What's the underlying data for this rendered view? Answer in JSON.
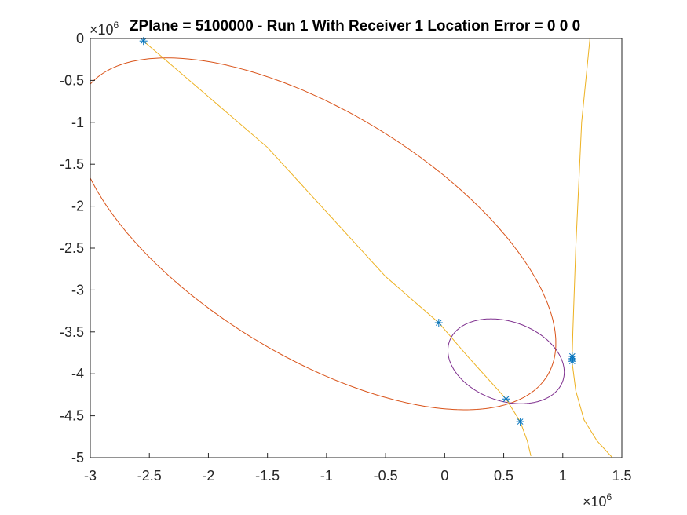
{
  "chart_data": {
    "type": "line",
    "title": "ZPlane = 5100000 - Run 1 With Receiver 1 Location Error = 0  0  0",
    "xlabel": "",
    "ylabel": "",
    "xlim": [
      -3000000,
      1500000
    ],
    "ylim": [
      -5000000,
      0
    ],
    "x_ticks": [
      -3,
      -2.5,
      -2,
      -1.5,
      -1,
      -0.5,
      0,
      0.5,
      1,
      1.5
    ],
    "x_tick_labels": [
      "-3",
      "-2.5",
      "-2",
      "-1.5",
      "-1",
      "-0.5",
      "0",
      "0.5",
      "1",
      "1.5"
    ],
    "y_ticks": [
      0,
      -0.5,
      -1,
      -1.5,
      -2,
      -2.5,
      -3,
      -3.5,
      -4,
      -4.5,
      -5
    ],
    "y_tick_labels": [
      "0",
      "-0.5",
      "-1",
      "-1.5",
      "-2",
      "-2.5",
      "-3",
      "-3.5",
      "-4",
      "-4.5",
      "-5"
    ],
    "x_exponent": "10",
    "x_exponent_power": "6",
    "x_exponent_prefix": "×",
    "y_exponent": "10",
    "y_exponent_power": "6",
    "y_exponent_prefix": "×",
    "grid": false,
    "colors": {
      "red": "#D95319",
      "yellow": "#EDB120",
      "purple": "#7E2F8E",
      "blue": "#0072BD",
      "axis": "#262626"
    },
    "series": [
      {
        "color": "#D95319",
        "shape": "ellipse",
        "center": [
          -1090000,
          -2330000
        ],
        "semi_axes": [
          2630000,
          1270000
        ],
        "angle_deg": -46.5
      },
      {
        "color": "#7E2F8E",
        "shape": "ellipse",
        "center": [
          520000,
          -3850000
        ],
        "semi_axes": [
          560000,
          430000
        ],
        "angle_deg": -48
      },
      {
        "color": "#EDB120",
        "shape": "polyline",
        "x": [
          -2550000,
          -1500000,
          -500000,
          -50000,
          200000,
          520000,
          640000,
          700000,
          730000
        ],
        "y": [
          -30000,
          -1300000,
          -2840000,
          -3390000,
          -3800000,
          -4300000,
          -4570000,
          -4800000,
          -4980000
        ]
      },
      {
        "color": "#EDB120",
        "shape": "polyline",
        "x": [
          1230000,
          1160000,
          1110000,
          1085000,
          1080000
        ],
        "y": [
          0,
          -1000000,
          -2500000,
          -3500000,
          -3780000
        ]
      },
      {
        "color": "#EDB120",
        "shape": "polyline",
        "x": [
          1080000,
          1110000,
          1180000,
          1290000,
          1420000
        ],
        "y": [
          -3870000,
          -4200000,
          -4550000,
          -4800000,
          -5000000
        ]
      }
    ],
    "markers": {
      "symbol": "*",
      "color": "#0072BD",
      "x": [
        -2550000,
        -50000,
        520000,
        640000,
        1080000,
        1080000,
        1080000
      ],
      "y": [
        -30000,
        -3390000,
        -4300000,
        -4570000,
        -3790000,
        -3820000,
        -3850000
      ]
    }
  }
}
